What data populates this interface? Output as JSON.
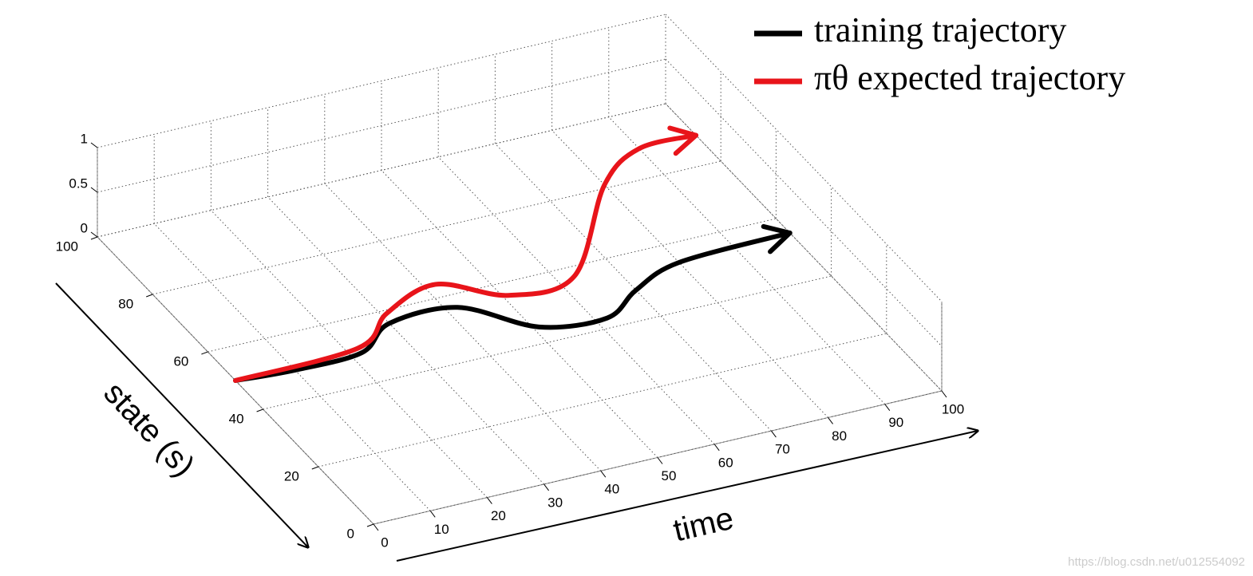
{
  "chart_data": {
    "type": "line3d",
    "x_label": "time",
    "y_label": "state (s)",
    "xlim": [
      0,
      100
    ],
    "ylim": [
      0,
      100
    ],
    "zlim": [
      0,
      1
    ],
    "xticks": [
      0,
      10,
      20,
      30,
      40,
      50,
      60,
      70,
      80,
      90,
      100
    ],
    "yticks": [
      0,
      20,
      40,
      60,
      80,
      100
    ],
    "zticks": [
      0,
      0.5,
      1
    ],
    "grid": true,
    "legend": "upper right",
    "series": [
      {
        "name": "training trajectory",
        "color": "#000000",
        "x": [
          0,
          10,
          22,
          30,
          42,
          51,
          62,
          70,
          80,
          100
        ],
        "values": [
          50,
          49,
          49.5,
          56,
          56,
          45,
          43,
          49,
          54,
          55
        ]
      },
      {
        "name": "πθ expected trajectory",
        "color": "#e8141a",
        "x": [
          0,
          22,
          31,
          42,
          51,
          63,
          80,
          90,
          100
        ],
        "values": [
          50,
          51,
          59,
          64,
          56,
          57,
          81,
          89,
          89
        ]
      }
    ]
  },
  "watermark": "https://blog.csdn.net/u012554092"
}
